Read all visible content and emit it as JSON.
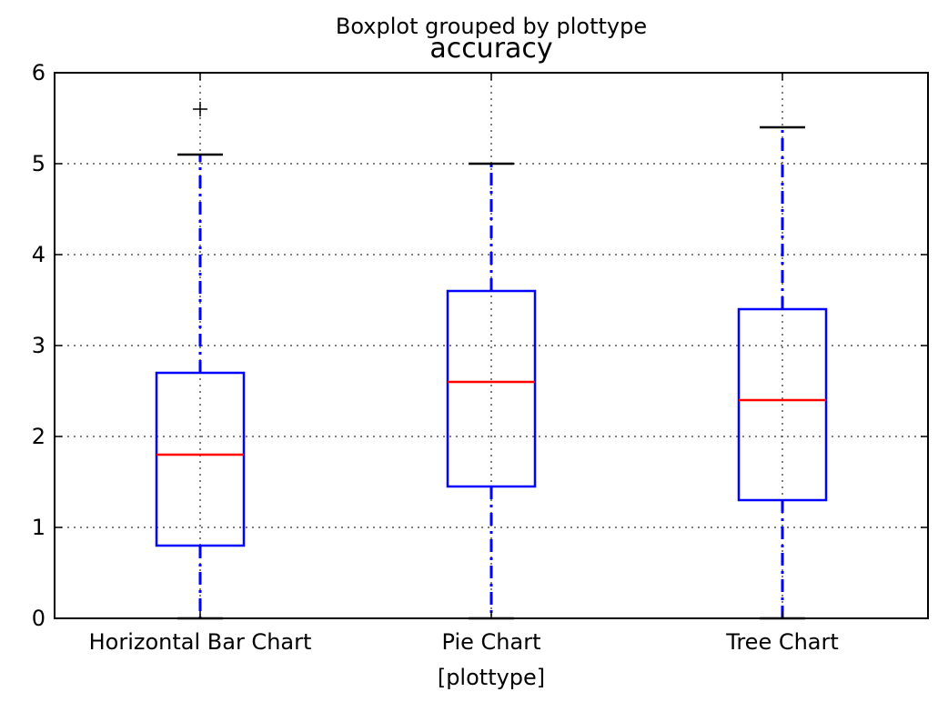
{
  "chart_data": {
    "type": "box",
    "suptitle": "Boxplot grouped by plottype",
    "title": "accuracy",
    "xlabel": "[plottype]",
    "ylabel": "",
    "ylim": [
      0,
      6
    ],
    "yticks": [
      0,
      1,
      2,
      3,
      4,
      5,
      6
    ],
    "grid": true,
    "categories": [
      "Horizontal Bar Chart",
      "Pie Chart",
      "Tree Chart"
    ],
    "boxes": [
      {
        "category": "Horizontal Bar Chart",
        "whislo": 0.0,
        "q1": 0.8,
        "median": 1.8,
        "q3": 2.7,
        "whishi": 5.1,
        "fliers": [
          5.6
        ]
      },
      {
        "category": "Pie Chart",
        "whislo": 0.0,
        "q1": 1.45,
        "median": 2.6,
        "q3": 3.6,
        "whishi": 5.0,
        "fliers": []
      },
      {
        "category": "Tree Chart",
        "whislo": 0.0,
        "q1": 1.3,
        "median": 2.4,
        "q3": 3.4,
        "whishi": 5.4,
        "fliers": []
      }
    ],
    "colors": {
      "box": "#0000ff",
      "whisker": "#0000ff",
      "median": "#ff0000",
      "cap": "#000000",
      "flier": "#000000",
      "grid": "#555555",
      "frame": "#000000"
    }
  }
}
